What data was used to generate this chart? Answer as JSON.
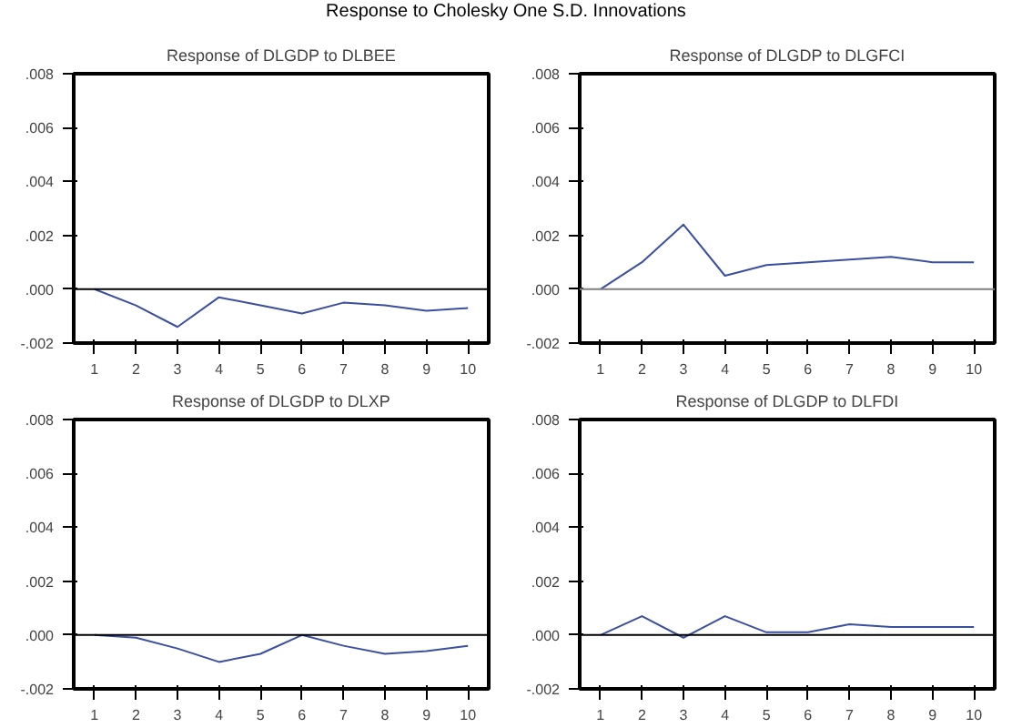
{
  "chart_data": [
    {
      "type": "other",
      "title": "Response to Cholesky One S.D. Innovations"
    },
    {
      "type": "line",
      "title": "Response of DLGDP to DLBEE",
      "categories": [
        "1",
        "2",
        "3",
        "4",
        "5",
        "6",
        "7",
        "8",
        "9",
        "10"
      ],
      "series": [
        {
          "color": "#3a4fa0",
          "values": [
            0.0,
            -0.0006,
            -0.0014,
            -0.0003,
            -0.0006,
            -0.0009,
            -0.0005,
            -0.0006,
            -0.0008,
            -0.0007
          ]
        }
      ],
      "ylim": [
        -0.002,
        0.008
      ],
      "yticks": [
        {
          "value": -0.002,
          "label": "-.002"
        },
        {
          "value": 0.0,
          "label": ".000"
        },
        {
          "value": 0.002,
          "label": ".002"
        },
        {
          "value": 0.004,
          "label": ".004"
        },
        {
          "value": 0.006,
          "label": ".006"
        },
        {
          "value": 0.008,
          "label": ".008"
        }
      ],
      "ref_lines": [
        {
          "axis": "y",
          "value": 0.0,
          "color": "#000000"
        }
      ]
    },
    {
      "type": "line",
      "title": "Response of DLGDP to DLGFCI",
      "categories": [
        "1",
        "2",
        "3",
        "4",
        "5",
        "6",
        "7",
        "8",
        "9",
        "10"
      ],
      "series": [
        {
          "color": "#3a4fa0",
          "values": [
            0.0,
            0.001,
            0.0024,
            0.0005,
            0.0009,
            0.001,
            0.0011,
            0.0012,
            0.001,
            0.001
          ]
        }
      ],
      "ylim": [
        -0.002,
        0.008
      ],
      "yticks": [
        {
          "value": -0.002,
          "label": "-.002"
        },
        {
          "value": 0.0,
          "label": ".000"
        },
        {
          "value": 0.002,
          "label": ".002"
        },
        {
          "value": 0.004,
          "label": ".004"
        },
        {
          "value": 0.006,
          "label": ".006"
        },
        {
          "value": 0.008,
          "label": ".008"
        }
      ],
      "ref_lines": [
        {
          "axis": "y",
          "value": 0.0,
          "color": "#808080"
        }
      ]
    },
    {
      "type": "line",
      "title": "Response of DLGDP to DLXP",
      "categories": [
        "1",
        "2",
        "3",
        "4",
        "5",
        "6",
        "7",
        "8",
        "9",
        "10"
      ],
      "series": [
        {
          "color": "#3a4fa0",
          "values": [
            0.0,
            -0.0001,
            -0.0005,
            -0.001,
            -0.0007,
            0.0,
            -0.0004,
            -0.0007,
            -0.0006,
            -0.0004
          ]
        }
      ],
      "ylim": [
        -0.002,
        0.008
      ],
      "yticks": [
        {
          "value": -0.002,
          "label": "-.002"
        },
        {
          "value": 0.0,
          "label": ".000"
        },
        {
          "value": 0.002,
          "label": ".002"
        },
        {
          "value": 0.004,
          "label": ".004"
        },
        {
          "value": 0.006,
          "label": ".006"
        },
        {
          "value": 0.008,
          "label": ".008"
        }
      ],
      "ref_lines": [
        {
          "axis": "y",
          "value": 0.0,
          "color": "#000000"
        }
      ]
    },
    {
      "type": "line",
      "title": "Response of DLGDP to DLFDI",
      "categories": [
        "1",
        "2",
        "3",
        "4",
        "5",
        "6",
        "7",
        "8",
        "9",
        "10"
      ],
      "series": [
        {
          "color": "#3a4fa0",
          "values": [
            0.0,
            0.0007,
            -0.0001,
            0.0007,
            0.0001,
            0.0001,
            0.0004,
            0.0003,
            0.0003,
            0.0003
          ]
        }
      ],
      "ylim": [
        -0.002,
        0.008
      ],
      "yticks": [
        {
          "value": -0.002,
          "label": "-.002"
        },
        {
          "value": 0.0,
          "label": ".000"
        },
        {
          "value": 0.002,
          "label": ".002"
        },
        {
          "value": 0.004,
          "label": ".004"
        },
        {
          "value": 0.006,
          "label": ".006"
        },
        {
          "value": 0.008,
          "label": ".008"
        }
      ],
      "ref_lines": [
        {
          "axis": "y",
          "value": 0.0,
          "color": "#000000"
        }
      ]
    }
  ]
}
